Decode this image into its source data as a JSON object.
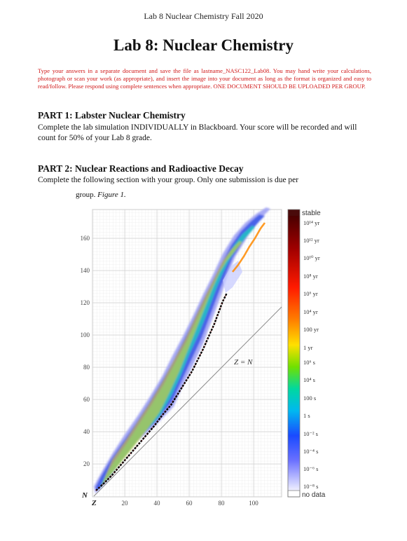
{
  "document": {
    "header": "Lab 8 Nuclear Chemistry Fall 2020",
    "title": "Lab 8: Nuclear Chemistry",
    "instructions": "Type your answers in a separate document and save the file as lastname_NASC122_Lab08. You may hand write your calculations, photograph or scan your work (as appropriate), and insert the image into your document as long as the format is organized and easy to read/follow. Please respond using complete sentences when appropriate. ONE DOCUMENT SHOULD BE UPLOADED PER GROUP.",
    "part1": {
      "title": "PART 1: Labster Nuclear Chemistry",
      "body": "Complete the lab simulation INDIVIDUALLY in Blackboard. Your score will be recorded and will count for 50% of your Lab 8 grade."
    },
    "part2": {
      "title": "PART 2: Nuclear Reactions and Radioactive Decay",
      "body": "Complete the following section with your group. Only one submission is due per",
      "caption_prefix": "group.",
      "caption_figure": "Figure 1."
    }
  },
  "figure": {
    "y_axis_label": "N",
    "x_axis_label": "Z",
    "diagonal_label": "Z = N",
    "y_ticks": [
      "20",
      "40",
      "60",
      "80",
      "100",
      "120",
      "140",
      "160"
    ],
    "x_ticks": [
      "20",
      "40",
      "60",
      "80",
      "100"
    ],
    "legend": {
      "stable_label": "stable",
      "no_data_label": "no data",
      "stops": [
        "10¹⁴ yr",
        "10¹² yr",
        "10¹⁰ yr",
        "10⁸ yr",
        "10⁶ yr",
        "10⁴ yr",
        "100 yr",
        "1 yr",
        "10⁶ s",
        "10⁴ s",
        "100 s",
        "1 s",
        "10⁻² s",
        "10⁻⁴ s",
        "10⁻⁶ s",
        "10⁻⁸ s"
      ]
    },
    "colors": {
      "stable": "#4a0a0a",
      "band_outer": "#8a8cf0",
      "band_mid": "#3a5ae0",
      "band_inner": "#20c8c0",
      "stable_line": "#000000",
      "diagonal": "#888888",
      "instructions_red": "#d01818"
    }
  }
}
